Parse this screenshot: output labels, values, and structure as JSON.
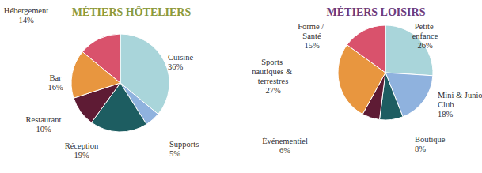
{
  "chart_data": [
    {
      "type": "pie",
      "title": "MÉTIERS HÔTELIERS",
      "categories": [
        "Cuisine",
        "Supports",
        "Réception",
        "Restaurant",
        "Bar",
        "Hébergement"
      ],
      "values": [
        36,
        5,
        19,
        10,
        16,
        14
      ],
      "value_labels": [
        "36%",
        "5%",
        "19%",
        "10%",
        "16%",
        "14%"
      ],
      "colors": [
        "#a9d5da",
        "#8fb2de",
        "#1d5d61",
        "#5e1b34",
        "#e8963f",
        "#d9526c"
      ],
      "data_labels": true
    },
    {
      "type": "pie",
      "title": "MÉTIERS LOISIRS",
      "categories": [
        "Petite enfance",
        "Mini & Junior Club",
        "Boutique",
        "Événementiel",
        "Sports nautiques & terrestres",
        "Forme / Santé"
      ],
      "values": [
        26,
        18,
        8,
        6,
        27,
        15
      ],
      "value_labels": [
        "26%",
        "18%",
        "8%",
        "6%",
        "27%",
        "15%"
      ],
      "colors": [
        "#a9d5da",
        "#8fb2de",
        "#1d5d61",
        "#5e1b34",
        "#e8963f",
        "#d9526c"
      ],
      "data_labels": true
    }
  ]
}
